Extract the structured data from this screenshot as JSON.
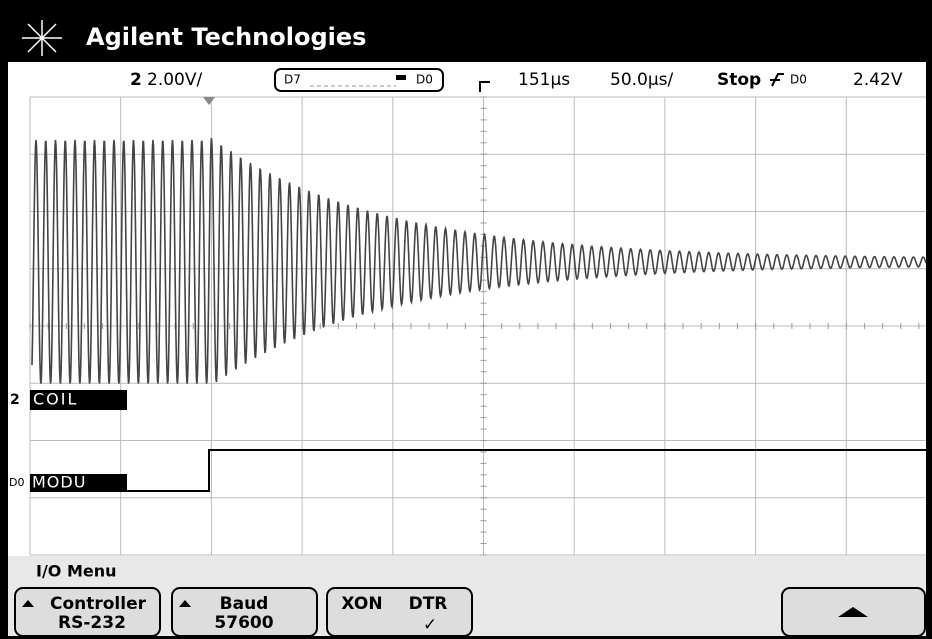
{
  "header": {
    "brand": "Agilent Technologies"
  },
  "status": {
    "channel": "2",
    "scale": "2.00V/",
    "digital_high": "D7",
    "digital_low": "D0",
    "delay": "151µs",
    "timebase": "50.0µs/",
    "run_state": "Stop",
    "trigger_source": "D0",
    "trigger_level": "2.42V"
  },
  "channels": [
    {
      "marker": "2",
      "label": "COIL"
    },
    {
      "marker": "D0",
      "label": "MODU"
    }
  ],
  "menu": {
    "title": "I/O Menu",
    "softkeys": [
      {
        "label": "Controller",
        "value": "RS-232"
      },
      {
        "label": "Baud",
        "value": "57600"
      },
      {
        "label": "XON"
      },
      {
        "label": "DTR",
        "value": "✓"
      }
    ]
  }
}
